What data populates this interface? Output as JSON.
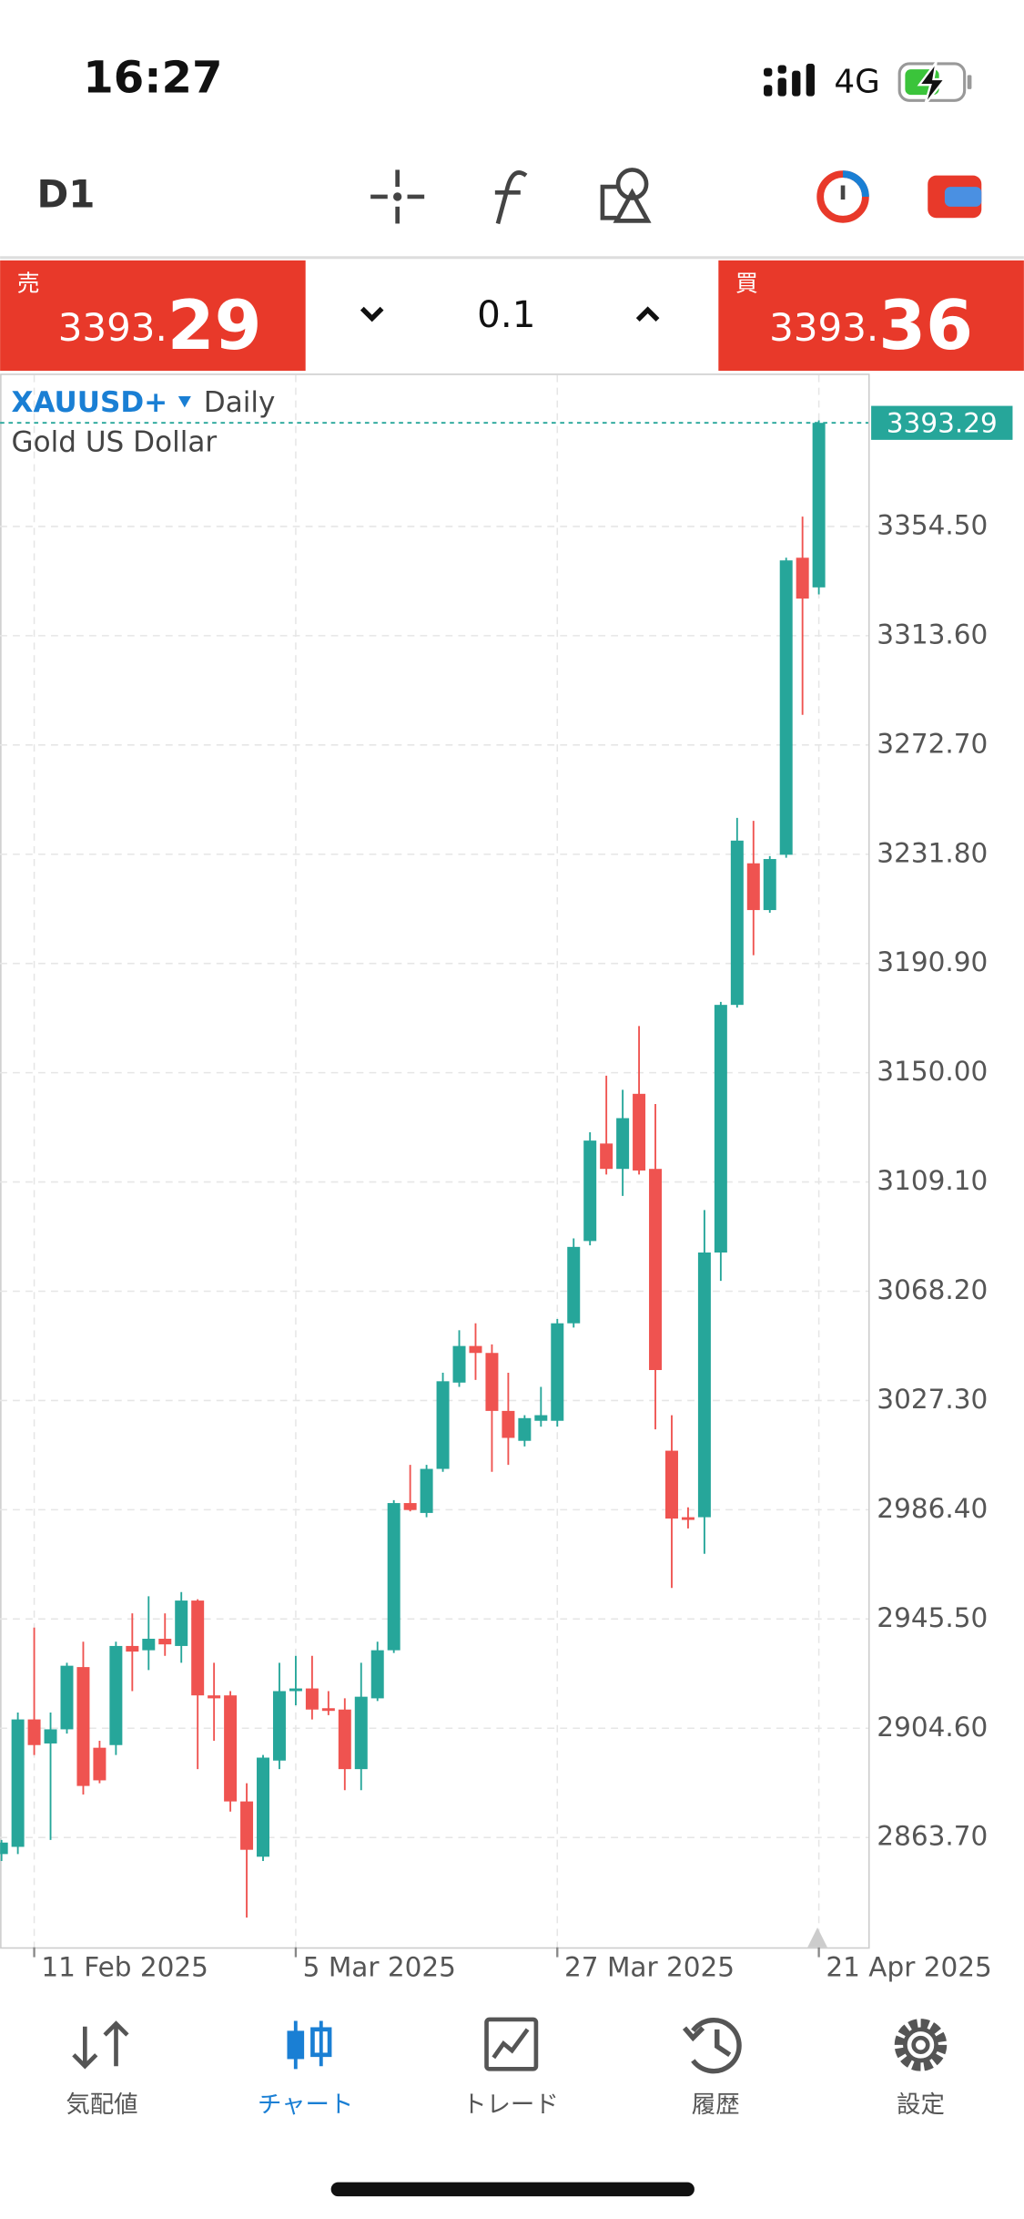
{
  "status_bar": {
    "time": "16:27",
    "network": "4G"
  },
  "toolbar": {
    "timeframe": "D1"
  },
  "trade_panel": {
    "sell": {
      "label": "売",
      "price_main": "3393.",
      "price_big": "29"
    },
    "volume": "0.1",
    "buy": {
      "label": "買",
      "price_main": "3393.",
      "price_big": "36"
    }
  },
  "chart_data": {
    "type": "candlestick",
    "symbol": "XAUUSD+",
    "period": "Daily",
    "description": "Gold US Dollar",
    "categories": [
      null,
      null,
      "11 Feb 2025",
      null,
      null,
      null,
      null,
      null,
      null,
      null,
      null,
      null,
      null,
      null,
      null,
      null,
      null,
      null,
      "5 Mar 2025",
      null,
      null,
      null,
      null,
      null,
      null,
      null,
      null,
      null,
      null,
      null,
      null,
      null,
      null,
      null,
      "27 Mar 2025",
      null,
      null,
      null,
      null,
      null,
      null,
      null,
      null,
      null,
      null,
      null,
      null,
      null,
      null,
      null,
      "21 Apr 2025"
    ],
    "open": [
      2857.5,
      2860.2,
      2907.9,
      2898.9,
      2904.2,
      2927.5,
      2897.3,
      2898.3,
      2935.4,
      2933.8,
      2938.1,
      2935.4,
      2952.4,
      2916.9,
      2916.9,
      2877.2,
      2856.5,
      2892.5,
      2918.5,
      2919.5,
      2912.1,
      2911.6,
      2889.3,
      2915.8,
      2933.8,
      2988.9,
      2985.2,
      3001.7,
      3034.0,
      3047.7,
      3045.1,
      3023.4,
      3012.2,
      3019.7,
      3019.7,
      3056.2,
      3087.0,
      3123.5,
      3114.0,
      3142.1,
      3114.0,
      3008.5,
      2983.6,
      2983.6,
      3082.7,
      3175.4,
      3228.4,
      3210.9,
      3231.6,
      3342.8,
      3331.7
    ],
    "high": [
      2862.8,
      2910.5,
      2942.3,
      2910.5,
      2929.1,
      2937.0,
      2899.9,
      2937.0,
      2947.6,
      2954.0,
      2947.6,
      2955.6,
      2952.9,
      2929.1,
      2918.5,
      2884.0,
      2894.6,
      2929.1,
      2931.7,
      2931.7,
      2918.5,
      2915.8,
      2929.1,
      2937.0,
      2990.0,
      3003.2,
      3003.2,
      3037.7,
      3053.6,
      3056.2,
      3048.3,
      3037.7,
      3021.8,
      3032.4,
      3057.8,
      3088.0,
      3127.7,
      3148.9,
      3143.6,
      3167.5,
      3138.3,
      3021.8,
      2987.3,
      3098.6,
      3176.5,
      3245.4,
      3244.3,
      3231.1,
      3342.8,
      3358.2,
      3394.2
    ],
    "low": [
      2854.9,
      2857.5,
      2894.6,
      2862.8,
      2902.6,
      2879.8,
      2884.0,
      2894.6,
      2918.5,
      2926.4,
      2931.7,
      2929.1,
      2889.3,
      2899.9,
      2873.4,
      2833.7,
      2854.9,
      2889.3,
      2913.2,
      2907.9,
      2909.5,
      2881.4,
      2881.4,
      2914.8,
      2932.8,
      2985.8,
      2983.6,
      3000.6,
      3032.4,
      3035.0,
      3000.6,
      3003.2,
      3010.1,
      3017.5,
      3017.5,
      3054.6,
      3085.4,
      3111.9,
      3103.9,
      3111.9,
      3016.5,
      2957.1,
      2979.4,
      2969.9,
      3072.1,
      3174.4,
      3194.0,
      3209.9,
      3230.5,
      3284.0,
      3329.1
    ],
    "close": [
      2861.8,
      2907.9,
      2898.3,
      2904.2,
      2928.0,
      2883.0,
      2885.1,
      2935.4,
      2933.3,
      2938.1,
      2936.0,
      2952.4,
      2916.9,
      2915.8,
      2877.2,
      2859.1,
      2893.6,
      2918.5,
      2919.5,
      2911.6,
      2911.1,
      2889.3,
      2916.4,
      2933.8,
      2988.9,
      2986.3,
      3001.7,
      3034.5,
      3047.7,
      3045.1,
      3023.4,
      3013.3,
      3020.7,
      3021.8,
      3056.2,
      3084.8,
      3124.6,
      3114.0,
      3133.0,
      3113.4,
      3038.7,
      2983.1,
      2982.6,
      3082.7,
      3175.4,
      3236.9,
      3210.9,
      3230.0,
      3341.8,
      3327.5,
      3393.29
    ],
    "up_color": "#26a69a",
    "down_color": "#ef5350",
    "last_price": 3393.29,
    "ylim": [
      2822.6,
      3411.2
    ],
    "yticks": [
      {
        "value": 2863.7,
        "label": "2863.70"
      },
      {
        "value": 2904.6,
        "label": "2904.60"
      },
      {
        "value": 2945.5,
        "label": "2945.50"
      },
      {
        "value": 2986.4,
        "label": "2986.40"
      },
      {
        "value": 3027.3,
        "label": "3027.30"
      },
      {
        "value": 3068.2,
        "label": "3068.20"
      },
      {
        "value": 3109.1,
        "label": "3109.10"
      },
      {
        "value": 3150,
        "label": "3150.00"
      },
      {
        "value": 3190.9,
        "label": "3190.90"
      },
      {
        "value": 3231.8,
        "label": "3231.80"
      },
      {
        "value": 3272.7,
        "label": "3272.70"
      },
      {
        "value": 3313.6,
        "label": "3313.60"
      },
      {
        "value": 3354.5,
        "label": "3354.50"
      }
    ],
    "grid": true
  },
  "tab_bar": {
    "tabs": [
      "気配値",
      "チャート",
      "トレード",
      "履歴",
      "設定"
    ],
    "active": 1
  }
}
